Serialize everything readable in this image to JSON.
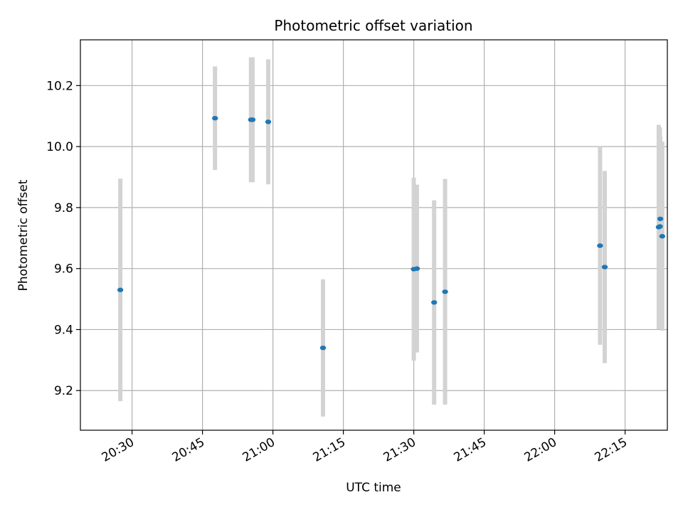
{
  "chart_data": {
    "type": "scatter",
    "title": "Photometric offset variation",
    "xlabel": "UTC time",
    "ylabel": "Photometric offset",
    "x_axis_type": "time",
    "xlim": [
      "20:19",
      "22:24"
    ],
    "ylim": [
      9.07,
      10.35
    ],
    "xticks": [
      "20:30",
      "20:45",
      "21:00",
      "21:15",
      "21:30",
      "21:45",
      "22:00",
      "22:15"
    ],
    "yticks": [
      9.2,
      9.4,
      9.6,
      9.8,
      10.0,
      10.2
    ],
    "ytick_labels": [
      "9.2",
      "9.4",
      "9.6",
      "9.8",
      "10.0",
      "10.2"
    ],
    "grid": true,
    "marker_color": "#1f77b4",
    "errorbar_color": "#d3d3d3",
    "points": [
      {
        "x": "20:27:30",
        "y": 9.53,
        "err": 0.365
      },
      {
        "x": "20:47:40",
        "y": 10.093,
        "err": 0.17
      },
      {
        "x": "20:55:20",
        "y": 10.088,
        "err": 0.205
      },
      {
        "x": "20:55:40",
        "y": 10.088,
        "err": 0.205
      },
      {
        "x": "20:59:00",
        "y": 10.081,
        "err": 0.205
      },
      {
        "x": "21:10:40",
        "y": 9.34,
        "err": 0.225
      },
      {
        "x": "21:30:00",
        "y": 9.598,
        "err": 0.3
      },
      {
        "x": "21:30:40",
        "y": 9.6,
        "err": 0.275
      },
      {
        "x": "21:34:20",
        "y": 9.489,
        "err": 0.335
      },
      {
        "x": "21:36:40",
        "y": 9.524,
        "err": 0.37
      },
      {
        "x": "22:09:40",
        "y": 9.675,
        "err": 0.325
      },
      {
        "x": "22:10:40",
        "y": 9.605,
        "err": 0.315
      },
      {
        "x": "22:22:10",
        "y": 9.736,
        "err": 0.335
      },
      {
        "x": "22:22:25",
        "y": 9.738,
        "err": 0.325
      },
      {
        "x": "22:22:30",
        "y": 9.763,
        "err": 0.27
      },
      {
        "x": "22:22:55",
        "y": 9.706,
        "err": 0.31
      }
    ]
  }
}
